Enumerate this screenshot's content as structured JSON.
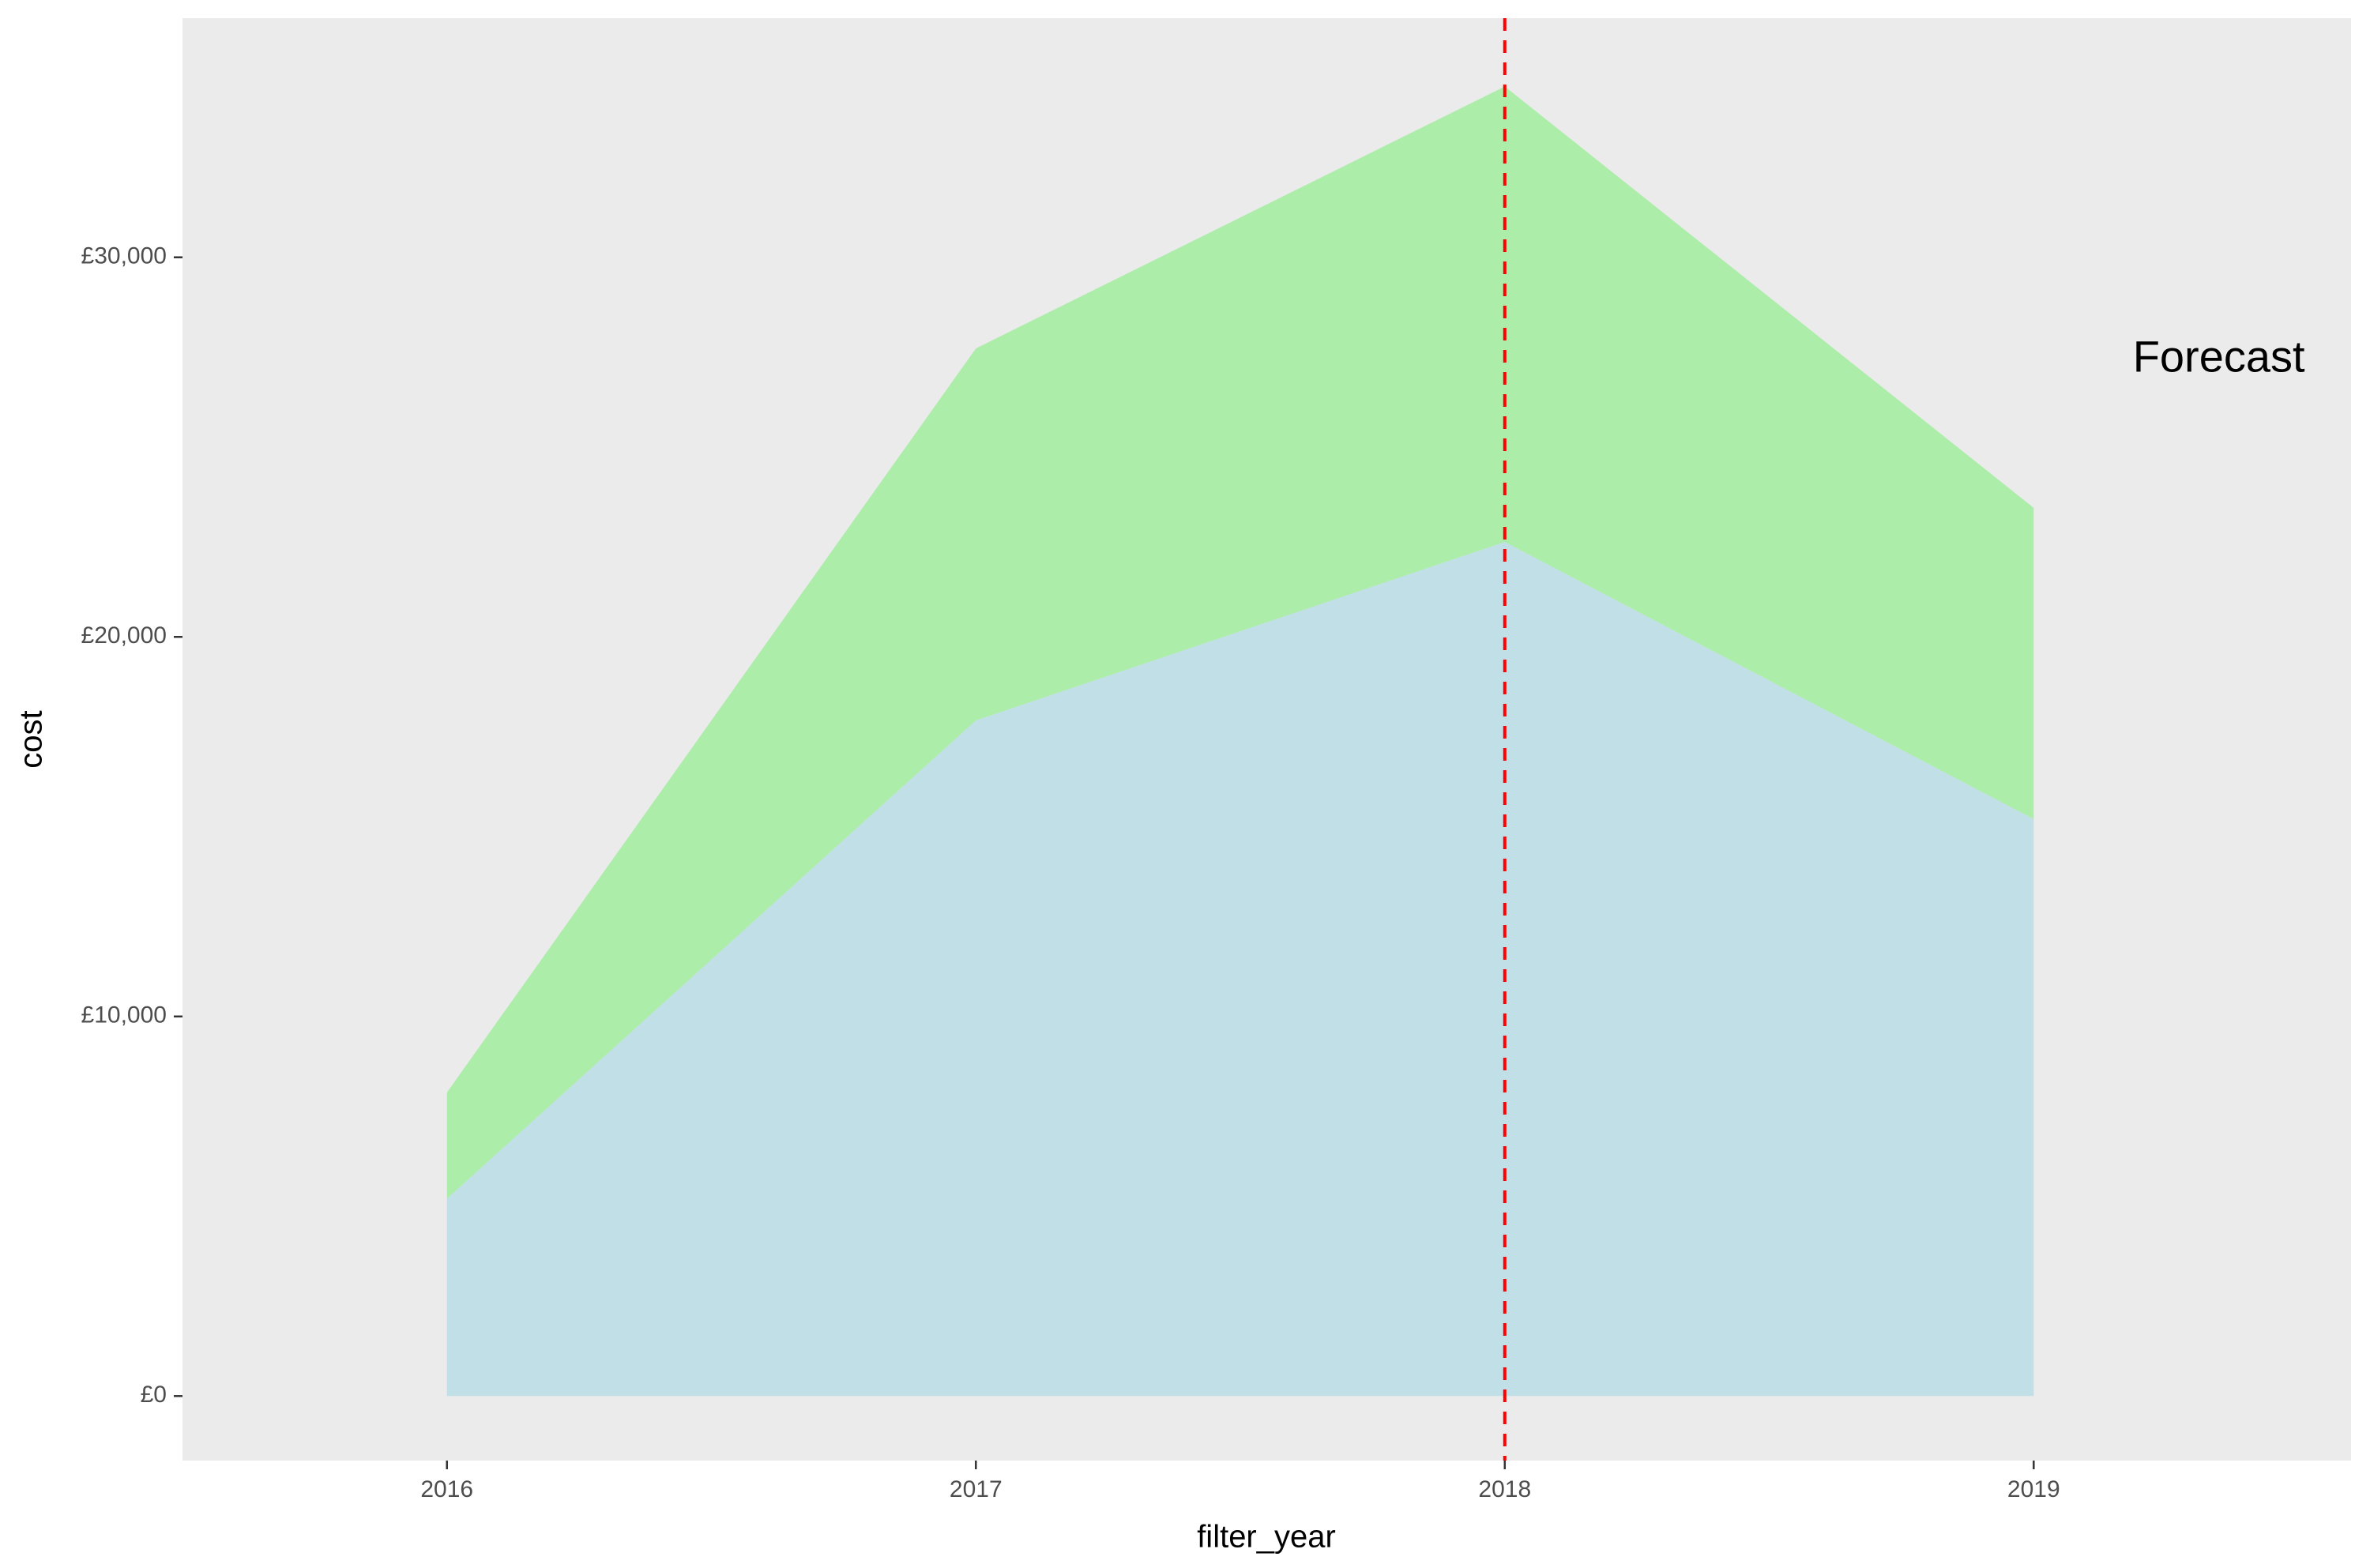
{
  "chart_data": {
    "type": "area",
    "stacked": true,
    "title": "",
    "xlabel": "filter_year",
    "ylabel": "cost",
    "x": [
      2016,
      2017,
      2018,
      2019
    ],
    "x_ticks": [
      "2016",
      "2017",
      "2018",
      "2019"
    ],
    "y_ticks": [
      {
        "value": 0,
        "label": "£0"
      },
      {
        "value": 10000,
        "label": "£10,000"
      },
      {
        "value": 20000,
        "label": "£20,000"
      },
      {
        "value": 30000,
        "label": "£30,000"
      }
    ],
    "xlim": [
      2015.5,
      2019.6
    ],
    "ylim": [
      -1700,
      36300
    ],
    "series": [
      {
        "values": [
          5200,
          17800,
          22500,
          15200
        ],
        "color": "#c1dfe7"
      },
      {
        "values": [
          2800,
          9800,
          12000,
          8200
        ],
        "color": "#abeda9"
      }
    ],
    "vline": {
      "x": 2018,
      "color": "#ff0000",
      "style": "dashed"
    },
    "annotation": {
      "text": "Forecast",
      "x": 2019.35,
      "y": 27300
    },
    "panel_background": "#ebebeb",
    "grid": false,
    "legend": "none"
  }
}
